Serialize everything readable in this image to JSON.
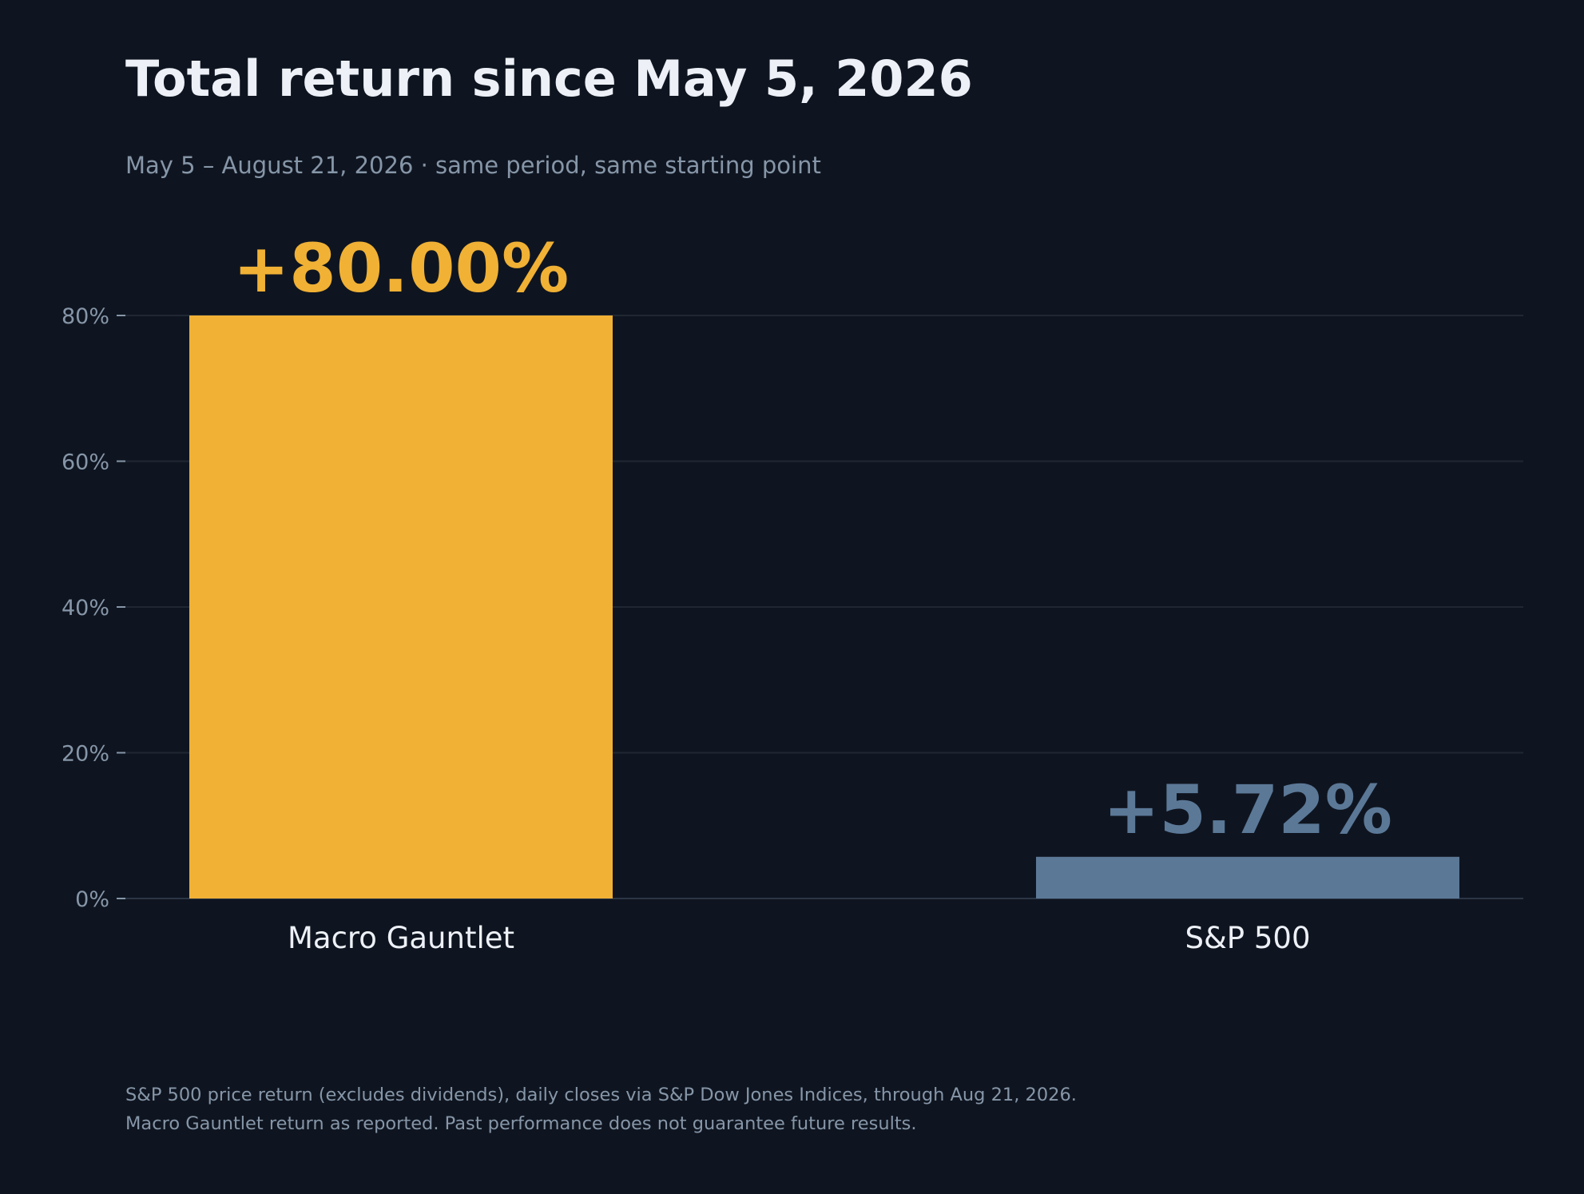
{
  "title": "Total return since May 5, 2026",
  "subtitle": "May 5 – August 21, 2026  ·  same period, same starting point",
  "footnote": {
    "line1": "S&P 500 price return (excludes dividends), daily closes via S&P Dow Jones Indices, through Aug 21, 2026.",
    "line2": "Macro Gauntlet return as reported. Past performance does not guarantee future results."
  },
  "colors": {
    "background": "#0f1520",
    "macro_gauntlet": "#f0b135",
    "sp500": "#5b7897",
    "grid": "#1f2733",
    "axis": "#2b3645",
    "tick": "#8696a8"
  },
  "chart_data": {
    "type": "bar",
    "categories": [
      "Macro Gauntlet",
      "S&P 500"
    ],
    "values": [
      80.0,
      5.72
    ],
    "value_labels": [
      "+80.00%",
      "+5.72%"
    ],
    "ylim": [
      0,
      80
    ],
    "yticks": [
      0,
      20,
      40,
      60,
      80
    ],
    "ytick_labels": [
      "0%",
      "20%",
      "40%",
      "60%",
      "80%"
    ],
    "grid": true,
    "legend": "none"
  }
}
